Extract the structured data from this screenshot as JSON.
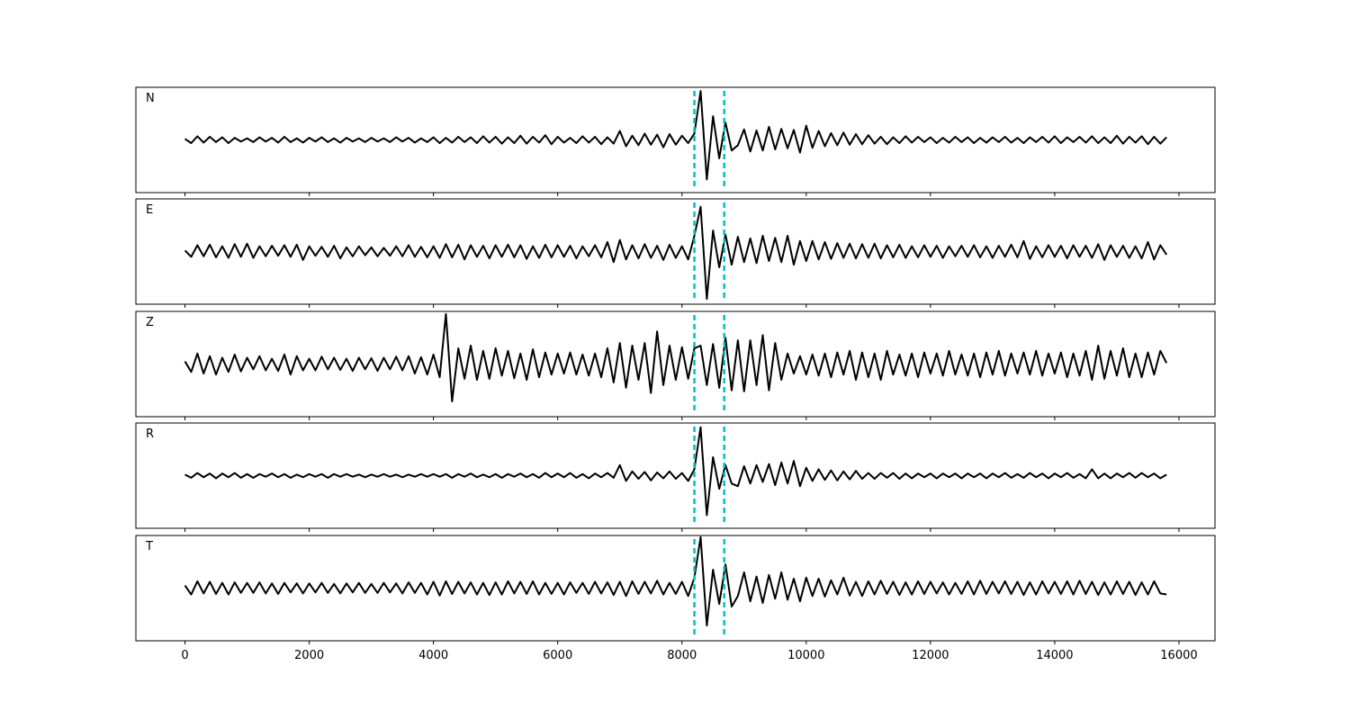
{
  "chart_data": {
    "type": "line",
    "x": [
      0,
      100,
      200,
      300,
      400,
      500,
      600,
      700,
      800,
      900,
      1000,
      1100,
      1200,
      1300,
      1400,
      1500,
      1600,
      1700,
      1800,
      1900,
      2000,
      2100,
      2200,
      2300,
      2400,
      2500,
      2600,
      2700,
      2800,
      2900,
      3000,
      3100,
      3200,
      3300,
      3400,
      3500,
      3600,
      3700,
      3800,
      3900,
      4000,
      4100,
      4200,
      4300,
      4400,
      4500,
      4600,
      4700,
      4800,
      4900,
      5000,
      5100,
      5200,
      5300,
      5400,
      5500,
      5600,
      5700,
      5800,
      5900,
      6000,
      6100,
      6200,
      6300,
      6400,
      6500,
      6600,
      6700,
      6800,
      6900,
      7000,
      7100,
      7200,
      7300,
      7400,
      7500,
      7600,
      7700,
      7800,
      7900,
      8000,
      8100,
      8200,
      8300,
      8400,
      8500,
      8600,
      8700,
      8800,
      8900,
      9000,
      9100,
      9200,
      9300,
      9400,
      9500,
      9600,
      9700,
      9800,
      9900,
      10000,
      10100,
      10200,
      10300,
      10400,
      10500,
      10600,
      10700,
      10800,
      10900,
      11000,
      11100,
      11200,
      11300,
      11400,
      11500,
      11600,
      11700,
      11800,
      11900,
      12000,
      12100,
      12200,
      12300,
      12400,
      12500,
      12600,
      12700,
      12800,
      12900,
      13000,
      13100,
      13200,
      13300,
      13400,
      13500,
      13600,
      13700,
      13800,
      13900,
      14000,
      14100,
      14200,
      14300,
      14400,
      14500,
      14600,
      14700,
      14800,
      14900,
      15000,
      15100,
      15200,
      15300,
      15400,
      15500,
      15600,
      15700,
      15800
    ],
    "xlim": [
      -790,
      16580
    ],
    "xticks": [
      0,
      2000,
      4000,
      6000,
      8000,
      10000,
      12000,
      14000,
      16000
    ],
    "ylim": [
      -1,
      1
    ],
    "vlines": {
      "values": [
        8200,
        8680
      ],
      "color": "#00bfbf"
    },
    "series": [
      {
        "name": "N",
        "color": "#000000",
        "values": [
          0.02,
          -0.06,
          0.07,
          -0.05,
          0.06,
          -0.04,
          0.05,
          -0.06,
          0.04,
          -0.03,
          0.03,
          -0.04,
          0.05,
          -0.03,
          0.04,
          -0.05,
          0.06,
          -0.04,
          0.03,
          -0.05,
          0.04,
          -0.03,
          0.05,
          -0.04,
          0.03,
          -0.05,
          0.04,
          -0.03,
          0.03,
          -0.04,
          0.04,
          -0.03,
          0.03,
          -0.04,
          0.05,
          -0.03,
          0.04,
          -0.05,
          0.03,
          -0.04,
          0.05,
          -0.06,
          0.04,
          -0.05,
          0.06,
          -0.04,
          0.05,
          -0.06,
          0.07,
          -0.05,
          0.06,
          -0.07,
          0.05,
          -0.06,
          0.08,
          -0.07,
          0.06,
          -0.05,
          0.09,
          -0.08,
          0.06,
          -0.05,
          0.04,
          -0.06,
          0.07,
          -0.05,
          0.06,
          -0.08,
          0.05,
          -0.07,
          0.17,
          -0.12,
          0.08,
          -0.1,
          0.12,
          -0.09,
          0.1,
          -0.14,
          0.11,
          -0.09,
          0.08,
          -0.06,
          0.12,
          0.93,
          -0.75,
          0.45,
          -0.35,
          0.33,
          -0.2,
          -0.1,
          0.2,
          -0.22,
          0.18,
          -0.2,
          0.25,
          -0.18,
          0.21,
          -0.16,
          0.19,
          -0.24,
          0.27,
          -0.15,
          0.17,
          -0.12,
          0.13,
          -0.1,
          0.14,
          -0.09,
          0.11,
          -0.08,
          0.09,
          -0.07,
          0.06,
          -0.08,
          0.05,
          -0.06,
          0.07,
          -0.05,
          0.06,
          -0.04,
          0.05,
          -0.06,
          0.04,
          -0.05,
          0.06,
          -0.04,
          0.05,
          -0.06,
          0.04,
          -0.05,
          0.05,
          -0.04,
          0.06,
          -0.05,
          0.04,
          -0.06,
          0.05,
          -0.04,
          0.06,
          -0.05,
          0.07,
          -0.06,
          0.05,
          -0.04,
          0.06,
          -0.05,
          0.07,
          -0.06,
          0.05,
          -0.06,
          0.08,
          -0.07,
          0.06,
          -0.05,
          0.07,
          -0.08,
          0.06,
          -0.07,
          0.05
        ]
      },
      {
        "name": "E",
        "color": "#000000",
        "values": [
          0.02,
          -0.1,
          0.12,
          -0.09,
          0.13,
          -0.11,
          0.1,
          -0.12,
          0.14,
          -0.1,
          0.15,
          -0.12,
          0.1,
          -0.09,
          0.11,
          -0.08,
          0.12,
          -0.1,
          0.13,
          -0.16,
          0.1,
          -0.08,
          0.09,
          -0.1,
          0.11,
          -0.13,
          0.08,
          -0.09,
          0.1,
          -0.07,
          0.08,
          -0.09,
          0.07,
          -0.08,
          0.1,
          -0.09,
          0.12,
          -0.1,
          0.09,
          -0.11,
          0.1,
          -0.12,
          0.14,
          -0.11,
          0.13,
          -0.15,
          0.12,
          -0.1,
          0.11,
          -0.13,
          0.12,
          -0.1,
          0.13,
          -0.11,
          0.12,
          -0.14,
          0.1,
          -0.12,
          0.13,
          -0.11,
          0.12,
          -0.1,
          0.11,
          -0.13,
          0.1,
          -0.09,
          0.12,
          -0.11,
          0.18,
          -0.2,
          0.22,
          -0.15,
          0.12,
          -0.13,
          0.14,
          -0.12,
          0.11,
          -0.16,
          0.13,
          -0.12,
          0.1,
          -0.15,
          0.3,
          0.85,
          -0.9,
          0.4,
          -0.3,
          0.32,
          -0.25,
          0.28,
          -0.2,
          0.25,
          -0.22,
          0.3,
          -0.18,
          0.26,
          -0.2,
          0.3,
          -0.25,
          0.2,
          -0.18,
          0.2,
          -0.15,
          0.18,
          -0.14,
          0.16,
          -0.12,
          0.15,
          -0.13,
          0.14,
          -0.12,
          0.15,
          -0.13,
          0.12,
          -0.11,
          0.13,
          -0.12,
          0.1,
          -0.11,
          0.12,
          -0.1,
          0.11,
          -0.12,
          0.1,
          -0.09,
          0.11,
          -0.1,
          0.12,
          -0.11,
          0.1,
          -0.12,
          0.11,
          -0.1,
          0.13,
          -0.11,
          0.2,
          -0.14,
          0.1,
          -0.11,
          0.12,
          -0.1,
          0.11,
          -0.13,
          0.12,
          -0.1,
          0.11,
          -0.12,
          0.14,
          -0.16,
          0.12,
          -0.1,
          0.11,
          -0.12,
          0.1,
          -0.13,
          0.18,
          -0.15,
          0.12,
          -0.06
        ]
      },
      {
        "name": "Z",
        "color": "#000000",
        "values": [
          0.05,
          -0.15,
          0.2,
          -0.18,
          0.15,
          -0.2,
          0.12,
          -0.15,
          0.18,
          -0.14,
          0.12,
          -0.1,
          0.15,
          -0.12,
          0.1,
          -0.13,
          0.18,
          -0.2,
          0.15,
          -0.12,
          0.1,
          -0.12,
          0.14,
          -0.1,
          0.12,
          -0.11,
          0.1,
          -0.13,
          0.12,
          -0.1,
          0.11,
          -0.13,
          0.12,
          -0.1,
          0.14,
          -0.12,
          0.15,
          -0.18,
          0.13,
          -0.2,
          0.18,
          -0.25,
          0.95,
          -0.71,
          0.3,
          -0.28,
          0.35,
          -0.3,
          0.25,
          -0.28,
          0.3,
          -0.22,
          0.25,
          -0.27,
          0.2,
          -0.3,
          0.28,
          -0.25,
          0.22,
          -0.2,
          0.2,
          -0.18,
          0.22,
          -0.2,
          0.18,
          -0.22,
          0.2,
          -0.25,
          0.3,
          -0.35,
          0.4,
          -0.45,
          0.35,
          -0.3,
          0.4,
          -0.55,
          0.62,
          -0.4,
          0.35,
          -0.3,
          0.32,
          -0.28,
          0.3,
          0.35,
          -0.4,
          0.38,
          -0.45,
          0.5,
          -0.5,
          0.45,
          -0.52,
          0.45,
          -0.4,
          0.55,
          -0.5,
          0.4,
          -0.3,
          0.2,
          -0.18,
          0.15,
          -0.2,
          0.18,
          -0.22,
          0.2,
          -0.25,
          0.22,
          -0.2,
          0.25,
          -0.3,
          0.22,
          -0.25,
          0.2,
          -0.3,
          0.25,
          -0.2,
          0.18,
          -0.22,
          0.2,
          -0.25,
          0.22,
          -0.18,
          0.2,
          -0.22,
          0.25,
          -0.2,
          0.18,
          -0.22,
          0.2,
          -0.25,
          0.22,
          -0.2,
          0.25,
          -0.22,
          0.2,
          -0.18,
          0.22,
          -0.2,
          0.25,
          -0.22,
          0.2,
          -0.18,
          0.22,
          -0.25,
          0.2,
          -0.22,
          0.25,
          -0.3,
          0.35,
          -0.28,
          0.25,
          -0.22,
          0.3,
          -0.25,
          0.2,
          -0.25,
          0.22,
          -0.2,
          0.25,
          0.02
        ]
      },
      {
        "name": "R",
        "color": "#000000",
        "values": [
          0.02,
          -0.04,
          0.05,
          -0.03,
          0.04,
          -0.05,
          0.04,
          -0.03,
          0.05,
          -0.04,
          0.03,
          -0.04,
          0.03,
          -0.02,
          0.04,
          -0.03,
          0.03,
          -0.04,
          0.02,
          -0.03,
          0.03,
          -0.02,
          0.03,
          -0.04,
          0.03,
          -0.02,
          0.03,
          -0.02,
          0.02,
          -0.03,
          0.02,
          -0.02,
          0.03,
          -0.02,
          0.02,
          -0.03,
          0.02,
          -0.02,
          0.03,
          -0.02,
          0.03,
          -0.02,
          0.03,
          -0.04,
          0.03,
          -0.02,
          0.04,
          -0.03,
          0.02,
          -0.03,
          0.03,
          -0.04,
          0.03,
          -0.02,
          0.04,
          -0.03,
          0.03,
          -0.04,
          0.05,
          -0.03,
          0.04,
          -0.03,
          0.05,
          -0.04,
          0.03,
          -0.05,
          0.04,
          -0.03,
          0.05,
          -0.04,
          0.2,
          -0.1,
          0.08,
          -0.06,
          0.07,
          -0.09,
          0.06,
          -0.05,
          0.08,
          -0.06,
          0.05,
          -0.1,
          0.12,
          0.92,
          -0.75,
          0.35,
          -0.25,
          0.2,
          -0.15,
          -0.2,
          0.18,
          -0.15,
          0.2,
          -0.12,
          0.22,
          -0.18,
          0.25,
          -0.15,
          0.28,
          -0.2,
          0.15,
          -0.1,
          0.12,
          -0.08,
          0.1,
          -0.09,
          0.08,
          -0.07,
          0.09,
          -0.06,
          0.05,
          -0.06,
          0.05,
          -0.04,
          0.05,
          -0.06,
          0.04,
          -0.05,
          0.04,
          -0.03,
          0.04,
          -0.05,
          0.04,
          -0.03,
          0.04,
          -0.05,
          0.04,
          -0.03,
          0.04,
          -0.05,
          0.04,
          -0.03,
          0.05,
          -0.04,
          0.03,
          -0.04,
          0.05,
          -0.03,
          0.04,
          -0.05,
          0.04,
          -0.03,
          0.05,
          -0.04,
          0.03,
          -0.05,
          0.12,
          -0.05,
          0.04,
          -0.05,
          0.04,
          -0.03,
          0.05,
          -0.04,
          0.05,
          -0.03,
          0.04,
          -0.05,
          0.02
        ]
      },
      {
        "name": "T",
        "color": "#000000",
        "values": [
          0.05,
          -0.12,
          0.13,
          -0.1,
          0.12,
          -0.11,
          0.1,
          -0.12,
          0.11,
          -0.09,
          0.1,
          -0.09,
          0.11,
          -0.1,
          0.09,
          -0.11,
          0.1,
          -0.08,
          0.09,
          -0.1,
          0.09,
          -0.08,
          0.1,
          -0.09,
          0.08,
          -0.1,
          0.09,
          -0.08,
          0.1,
          -0.09,
          0.08,
          -0.09,
          0.1,
          -0.08,
          0.09,
          -0.1,
          0.11,
          -0.09,
          0.1,
          -0.12,
          0.12,
          -0.14,
          0.13,
          -0.11,
          0.12,
          -0.1,
          0.11,
          -0.12,
          0.1,
          -0.13,
          0.11,
          -0.12,
          0.13,
          -0.1,
          0.12,
          -0.11,
          0.13,
          -0.12,
          0.1,
          -0.11,
          0.1,
          -0.12,
          0.11,
          -0.09,
          0.1,
          -0.11,
          0.12,
          -0.1,
          0.11,
          -0.13,
          0.12,
          -0.15,
          0.13,
          -0.11,
          0.12,
          -0.1,
          0.14,
          -0.12,
          0.1,
          -0.11,
          0.12,
          -0.15,
          0.2,
          0.97,
          -0.71,
          0.35,
          -0.3,
          0.45,
          -0.35,
          -0.15,
          0.3,
          -0.25,
          0.22,
          -0.28,
          0.25,
          -0.2,
          0.3,
          -0.22,
          0.18,
          -0.25,
          0.2,
          -0.15,
          0.18,
          -0.16,
          0.15,
          -0.12,
          0.2,
          -0.14,
          0.12,
          -0.15,
          0.13,
          -0.12,
          0.14,
          -0.11,
          0.12,
          -0.13,
          0.11,
          -0.12,
          0.13,
          -0.11,
          0.12,
          -0.1,
          0.11,
          -0.12,
          0.1,
          -0.11,
          0.13,
          -0.12,
          0.14,
          -0.11,
          0.12,
          -0.1,
          0.13,
          -0.11,
          0.12,
          -0.13,
          0.11,
          -0.12,
          0.13,
          -0.1,
          0.12,
          -0.11,
          0.13,
          -0.12,
          0.14,
          -0.11,
          0.12,
          -0.13,
          0.11,
          -0.12,
          0.13,
          -0.11,
          0.12,
          -0.13,
          0.11,
          -0.12,
          0.13,
          -0.1,
          -0.12
        ]
      }
    ]
  }
}
